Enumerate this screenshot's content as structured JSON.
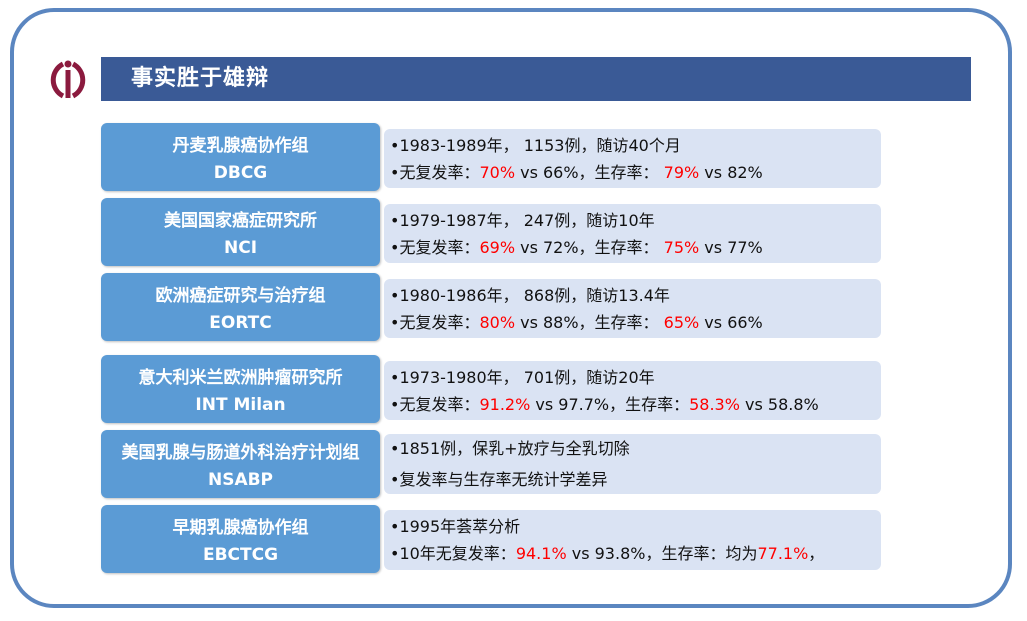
{
  "slide": {
    "title": "事实胜于雄辩",
    "logo_icon": "circle-i-logo-icon",
    "colors": {
      "title_bar": "#3a5a96",
      "label_bg": "#5b9bd5",
      "info_bg": "#dae3f3",
      "highlight": "#ff0000",
      "frame": "#5b86c0"
    }
  },
  "trials": [
    {
      "name_zh": "丹麦乳腺癌协作组",
      "name_en": "DBCG",
      "line1": "•1983-1989年， 1153例，随访40个月",
      "line2": {
        "pre": "•无复发率：",
        "hl1": "70%",
        "mid": " vs 66%，生存率： ",
        "hl2": "79%",
        "post": " vs 82%"
      }
    },
    {
      "name_zh": "美国国家癌症研究所",
      "name_en": "NCI",
      "line1": "•1979-1987年， 247例，随访10年",
      "line2": {
        "pre": "•无复发率：",
        "hl1": "69%",
        "mid": " vs 72%，生存率： ",
        "hl2": "75%",
        "post": " vs 77%"
      }
    },
    {
      "name_zh": "欧洲癌症研究与治疗组",
      "name_en": "EORTC",
      "line1": "•1980-1986年， 868例，随访13.4年",
      "line2": {
        "pre": "•无复发率：",
        "hl1": "80%",
        "mid": " vs 88%，生存率： ",
        "hl2": "65%",
        "post": " vs 66%"
      }
    },
    {
      "name_zh": "意大利米兰欧洲肿瘤研究所",
      "name_en": "INT Milan",
      "line1": "•1973-1980年， 701例，随访20年",
      "line2": {
        "pre": "•无复发率：",
        "hl1": "91.2%",
        "mid": " vs 97.7%，生存率：",
        "hl2": "58.3%",
        "post": " vs 58.8%"
      }
    },
    {
      "name_zh": "美国乳腺与肠道外科治疗计划组",
      "name_en": "NSABP",
      "line1": "•1851例，保乳+放疗与全乳切除",
      "line2": {
        "pre": "•复发率与生存率无统计学差异",
        "hl1": "",
        "mid": "",
        "hl2": "",
        "post": ""
      }
    },
    {
      "name_zh": "早期乳腺癌协作组",
      "name_en": "EBCTCG",
      "line1": "•1995年荟萃分析",
      "line2": {
        "pre": "•10年无复发率：",
        "hl1": "94.1%",
        "mid": " vs 93.8%，生存率：均为",
        "hl2": "77.1%",
        "post": "，"
      }
    }
  ]
}
